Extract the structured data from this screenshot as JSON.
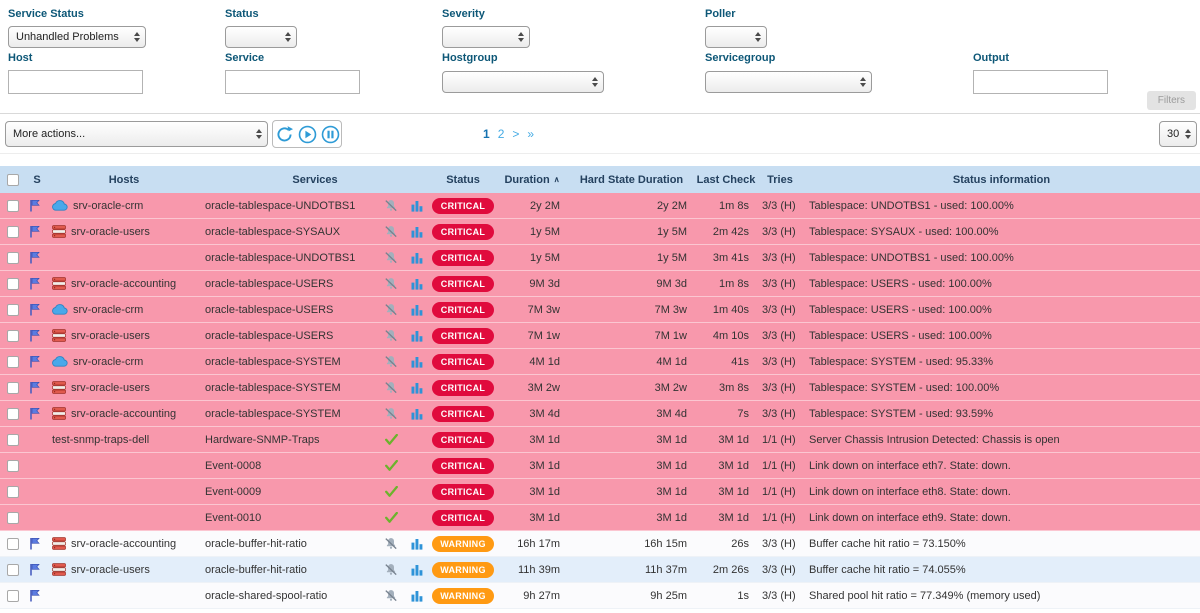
{
  "filters": {
    "service_status": {
      "label": "Service Status",
      "value": "Unhandled Problems"
    },
    "status": {
      "label": "Status",
      "value": ""
    },
    "severity": {
      "label": "Severity",
      "value": ""
    },
    "poller": {
      "label": "Poller",
      "value": ""
    },
    "host": {
      "label": "Host",
      "value": ""
    },
    "service": {
      "label": "Service",
      "value": ""
    },
    "hostgroup": {
      "label": "Hostgroup",
      "value": ""
    },
    "servicegroup": {
      "label": "Servicegroup",
      "value": ""
    },
    "output": {
      "label": "Output",
      "value": ""
    },
    "filters_button_label": "Filters"
  },
  "toolbar": {
    "more_actions_label": "More actions...",
    "pagination": {
      "current": "1",
      "page2": "2",
      "next": ">",
      "last": "»"
    },
    "page_size_value": "30"
  },
  "table": {
    "headers": {
      "s": "S",
      "hosts": "Hosts",
      "services": "Services",
      "status": "Status",
      "duration": "Duration",
      "sort_indicator": "∧",
      "hard_state_duration": "Hard State Duration",
      "last_check": "Last Check",
      "tries": "Tries",
      "status_information": "Status information"
    },
    "rows": [
      {
        "checkbox": true,
        "flag": true,
        "host_icon": "cloud-icon",
        "host": "srv-oracle-crm",
        "service": "oracle-tablespace-UNDOTBS1",
        "service_icons": [
          "notifications-disabled-icon",
          "performance-graph-icon"
        ],
        "status": "CRITICAL",
        "duration": "2y 2M",
        "hard_state_duration": "2y 2M",
        "last_check": "1m 8s",
        "tries": "3/3 (H)",
        "status_information": "Tablespace: UNDOTBS1 - used: 100.00%",
        "row_style": "critical"
      },
      {
        "checkbox": true,
        "flag": true,
        "host_icon": "database-icon",
        "host": "srv-oracle-users",
        "service": "oracle-tablespace-SYSAUX",
        "service_icons": [
          "notifications-disabled-icon",
          "performance-graph-icon"
        ],
        "status": "CRITICAL",
        "duration": "1y 5M",
        "hard_state_duration": "1y 5M",
        "last_check": "2m 42s",
        "tries": "3/3 (H)",
        "status_information": "Tablespace: SYSAUX - used: 100.00%",
        "row_style": "critical"
      },
      {
        "checkbox": true,
        "flag": true,
        "host_icon": "",
        "host": "",
        "service": "oracle-tablespace-UNDOTBS1",
        "service_icons": [
          "notifications-disabled-icon",
          "performance-graph-icon"
        ],
        "status": "CRITICAL",
        "duration": "1y 5M",
        "hard_state_duration": "1y 5M",
        "last_check": "3m 41s",
        "tries": "3/3 (H)",
        "status_information": "Tablespace: UNDOTBS1 - used: 100.00%",
        "row_style": "critical"
      },
      {
        "checkbox": true,
        "flag": true,
        "host_icon": "database-icon",
        "host": "srv-oracle-accounting",
        "service": "oracle-tablespace-USERS",
        "service_icons": [
          "notifications-disabled-icon",
          "performance-graph-icon"
        ],
        "status": "CRITICAL",
        "duration": "9M 3d",
        "hard_state_duration": "9M 3d",
        "last_check": "1m 8s",
        "tries": "3/3 (H)",
        "status_information": "Tablespace: USERS - used: 100.00%",
        "row_style": "critical"
      },
      {
        "checkbox": true,
        "flag": true,
        "host_icon": "cloud-icon",
        "host": "srv-oracle-crm",
        "service": "oracle-tablespace-USERS",
        "service_icons": [
          "notifications-disabled-icon",
          "performance-graph-icon"
        ],
        "status": "CRITICAL",
        "duration": "7M 3w",
        "hard_state_duration": "7M 3w",
        "last_check": "1m 40s",
        "tries": "3/3 (H)",
        "status_information": "Tablespace: USERS - used: 100.00%",
        "row_style": "critical"
      },
      {
        "checkbox": true,
        "flag": true,
        "host_icon": "database-icon",
        "host": "srv-oracle-users",
        "service": "oracle-tablespace-USERS",
        "service_icons": [
          "notifications-disabled-icon",
          "performance-graph-icon"
        ],
        "status": "CRITICAL",
        "duration": "7M 1w",
        "hard_state_duration": "7M 1w",
        "last_check": "4m 10s",
        "tries": "3/3 (H)",
        "status_information": "Tablespace: USERS - used: 100.00%",
        "row_style": "critical"
      },
      {
        "checkbox": true,
        "flag": true,
        "host_icon": "cloud-icon",
        "host": "srv-oracle-crm",
        "service": "oracle-tablespace-SYSTEM",
        "service_icons": [
          "notifications-disabled-icon",
          "performance-graph-icon"
        ],
        "status": "CRITICAL",
        "duration": "4M 1d",
        "hard_state_duration": "4M 1d",
        "last_check": "41s",
        "tries": "3/3 (H)",
        "status_information": "Tablespace: SYSTEM - used: 95.33%",
        "row_style": "critical"
      },
      {
        "checkbox": true,
        "flag": true,
        "host_icon": "database-icon",
        "host": "srv-oracle-users",
        "service": "oracle-tablespace-SYSTEM",
        "service_icons": [
          "notifications-disabled-icon",
          "performance-graph-icon"
        ],
        "status": "CRITICAL",
        "duration": "3M 2w",
        "hard_state_duration": "3M 2w",
        "last_check": "3m 8s",
        "tries": "3/3 (H)",
        "status_information": "Tablespace: SYSTEM - used: 100.00%",
        "row_style": "critical"
      },
      {
        "checkbox": true,
        "flag": true,
        "host_icon": "database-icon",
        "host": "srv-oracle-accounting",
        "service": "oracle-tablespace-SYSTEM",
        "service_icons": [
          "notifications-disabled-icon",
          "performance-graph-icon"
        ],
        "status": "CRITICAL",
        "duration": "3M 4d",
        "hard_state_duration": "3M 4d",
        "last_check": "7s",
        "tries": "3/3 (H)",
        "status_information": "Tablespace: SYSTEM - used: 93.59%",
        "row_style": "critical"
      },
      {
        "checkbox": true,
        "flag": false,
        "host_icon": "",
        "host": "test-snmp-traps-dell",
        "service": "Hardware-SNMP-Traps",
        "service_icons": [
          "passive-check-icon"
        ],
        "status": "CRITICAL",
        "duration": "3M 1d",
        "hard_state_duration": "3M 1d",
        "last_check": "3M 1d",
        "tries": "1/1 (H)",
        "status_information": "Server Chassis Intrusion Detected: Chassis is open",
        "row_style": "critical"
      },
      {
        "checkbox": true,
        "flag": false,
        "host_icon": "",
        "host": "",
        "service": "Event-0008",
        "service_icons": [
          "passive-check-icon"
        ],
        "status": "CRITICAL",
        "duration": "3M 1d",
        "hard_state_duration": "3M 1d",
        "last_check": "3M 1d",
        "tries": "1/1 (H)",
        "status_information": "Link down on interface eth7. State: down.",
        "row_style": "critical"
      },
      {
        "checkbox": true,
        "flag": false,
        "host_icon": "",
        "host": "",
        "service": "Event-0009",
        "service_icons": [
          "passive-check-icon"
        ],
        "status": "CRITICAL",
        "duration": "3M 1d",
        "hard_state_duration": "3M 1d",
        "last_check": "3M 1d",
        "tries": "1/1 (H)",
        "status_information": "Link down on interface eth8. State: down.",
        "row_style": "critical"
      },
      {
        "checkbox": true,
        "flag": false,
        "host_icon": "",
        "host": "",
        "service": "Event-0010",
        "service_icons": [
          "passive-check-icon"
        ],
        "status": "CRITICAL",
        "duration": "3M 1d",
        "hard_state_duration": "3M 1d",
        "last_check": "3M 1d",
        "tries": "1/1 (H)",
        "status_information": "Link down on interface eth9. State: down.",
        "row_style": "critical"
      },
      {
        "checkbox": true,
        "flag": true,
        "host_icon": "database-icon",
        "host": "srv-oracle-accounting",
        "service": "oracle-buffer-hit-ratio",
        "service_icons": [
          "notifications-disabled-icon",
          "performance-graph-icon"
        ],
        "status": "WARNING",
        "duration": "16h 17m",
        "hard_state_duration": "16h 15m",
        "last_check": "26s",
        "tries": "3/3 (H)",
        "status_information": "Buffer cache hit ratio = 73.150%",
        "row_style": "light"
      },
      {
        "checkbox": true,
        "flag": true,
        "host_icon": "database-icon",
        "host": "srv-oracle-users",
        "service": "oracle-buffer-hit-ratio",
        "service_icons": [
          "notifications-disabled-icon",
          "performance-graph-icon"
        ],
        "status": "WARNING",
        "duration": "11h 39m",
        "hard_state_duration": "11h 37m",
        "last_check": "2m 26s",
        "tries": "3/3 (H)",
        "status_information": "Buffer cache hit ratio = 74.055%",
        "row_style": "blue"
      },
      {
        "checkbox": true,
        "flag": true,
        "host_icon": "",
        "host": "",
        "service": "oracle-shared-spool-ratio",
        "service_icons": [
          "notifications-disabled-icon",
          "performance-graph-icon"
        ],
        "status": "WARNING",
        "duration": "9h 27m",
        "hard_state_duration": "9h 25m",
        "last_check": "1s",
        "tries": "3/3 (H)",
        "status_information": "Shared pool hit ratio = 77.349% (memory used)",
        "row_style": "light"
      }
    ]
  },
  "colors": {
    "critical_row_bg": "#f898ac",
    "row_bg_light": "#fbfbfd",
    "row_bg_blue": "#e3eefa",
    "critical_badge": "#e00b3d",
    "warning_badge": "#ff9a13",
    "header_bg": "#c8def2"
  }
}
